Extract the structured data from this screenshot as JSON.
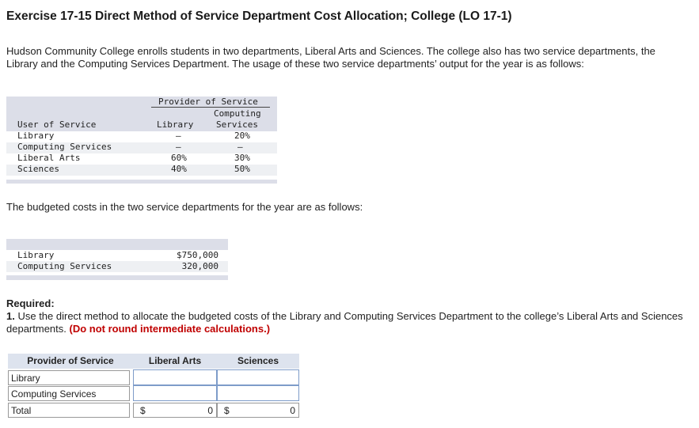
{
  "title": "Exercise 17-15 Direct Method of Service Department Cost Allocation; College (LO 17-1)",
  "intro": "Hudson Community College enrolls students in two departments, Liberal Arts and Sciences. The college also has two service departments, the Library and the Computing Services Department. The usage of these two service departments’ output for the year is as follows:",
  "usage_table": {
    "group_header": "Provider of Service",
    "row_header": "User of Service",
    "col_library": "Library",
    "col_computing_1": "Computing",
    "col_computing_2": "Services",
    "rows": [
      {
        "user": "Library",
        "library": "—",
        "computing": "20%"
      },
      {
        "user": "Computing Services",
        "library": "—",
        "computing": "—"
      },
      {
        "user": "Liberal Arts",
        "library": "60%",
        "computing": "30%"
      },
      {
        "user": "Sciences",
        "library": "40%",
        "computing": "50%"
      }
    ]
  },
  "budget_intro": "The budgeted costs in the two service departments for the year are as follows:",
  "budget_table": {
    "rows": [
      {
        "label": "Library",
        "value": "$750,000"
      },
      {
        "label": "Computing Services",
        "value": "320,000"
      }
    ]
  },
  "required": {
    "heading": "Required:",
    "number": "1.",
    "text": "Use the direct method to allocate the budgeted costs of the Library and Computing Services Department to the college’s Liberal Arts and Sciences departments.",
    "hint": "(Do not round intermediate calculations.)"
  },
  "answer_table": {
    "headers": {
      "provider": "Provider of Service",
      "liberal_arts": "Liberal Arts",
      "sciences": "Sciences"
    },
    "rows": [
      {
        "label": "Library",
        "liberal_arts": "",
        "sciences": ""
      },
      {
        "label": "Computing Services",
        "liberal_arts": "",
        "sciences": ""
      }
    ],
    "total": {
      "label": "Total",
      "currency": "$",
      "liberal_arts": "0",
      "sciences": "0"
    }
  },
  "colors": {
    "header_bg": "#dcdee8",
    "stripe": "#eef0f3",
    "hint": "#c00000",
    "input_border": "#7e9cc9"
  }
}
